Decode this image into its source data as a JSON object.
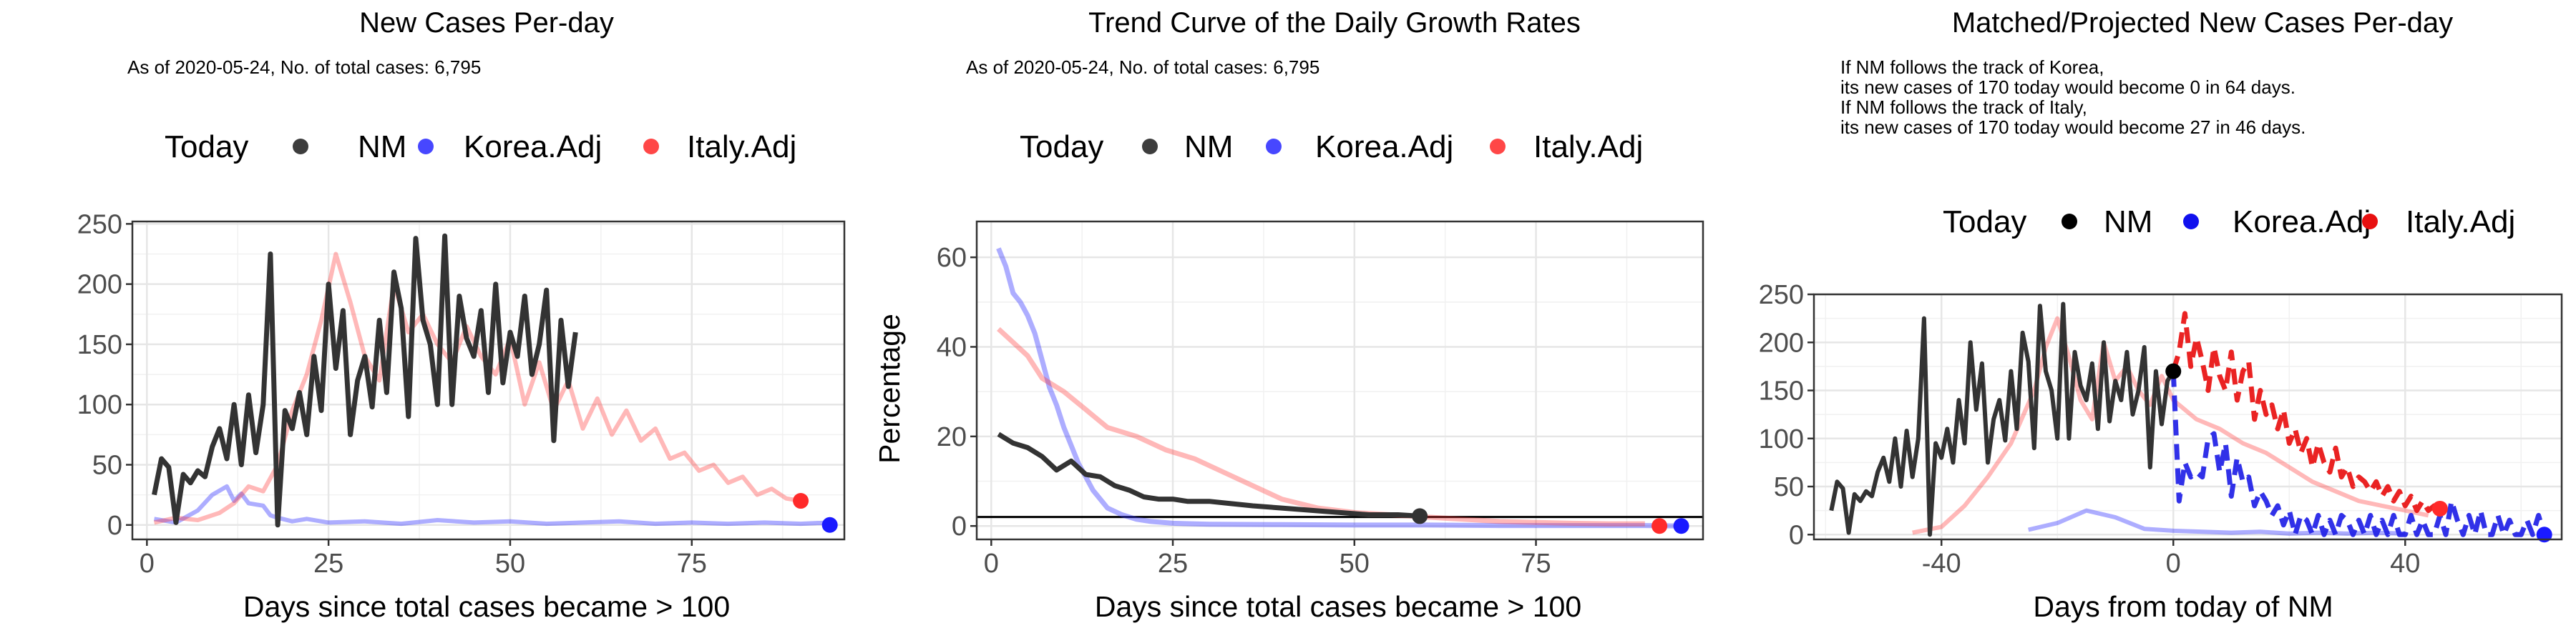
{
  "chart_data": [
    {
      "type": "line",
      "title": "New Cases Per-day",
      "subtitle": "As of 2020-05-24, No. of total cases: 6,795",
      "legend": {
        "title": "Today",
        "position": "top",
        "entries": [
          "NM",
          "Korea.Adj",
          "Italy.Adj"
        ]
      },
      "xlabel": "Days since total cases became > 100",
      "ylabel": "",
      "xlim": [
        -2,
        96
      ],
      "ylim": [
        -12,
        252
      ],
      "xticks": [
        0,
        25,
        50,
        75
      ],
      "yticks": [
        0,
        50,
        100,
        150,
        200,
        250
      ],
      "grid": true,
      "series": [
        {
          "name": "NM",
          "color": "#333333",
          "opacity": 1,
          "width": 7,
          "dash": "",
          "x": [
            1,
            2,
            3,
            4,
            5,
            6,
            7,
            8,
            9,
            10,
            11,
            12,
            13,
            14,
            15,
            16,
            17,
            18,
            19,
            20,
            21,
            22,
            23,
            24,
            25,
            26,
            27,
            28,
            29,
            30,
            31,
            32,
            33,
            34,
            35,
            36,
            37,
            38,
            39,
            40,
            41,
            42,
            43,
            44,
            45,
            46,
            47,
            48,
            49,
            50,
            51,
            52,
            53,
            54,
            55,
            56,
            57,
            58,
            59
          ],
          "y": [
            25,
            55,
            48,
            2,
            42,
            35,
            45,
            40,
            65,
            80,
            55,
            100,
            50,
            108,
            60,
            100,
            225,
            0,
            95,
            80,
            110,
            75,
            140,
            95,
            200,
            130,
            178,
            75,
            120,
            140,
            98,
            170,
            110,
            210,
            180,
            90,
            238,
            170,
            150,
            100,
            240,
            100,
            190,
            155,
            140,
            178,
            110,
            200,
            118,
            160,
            140,
            190,
            125,
            150,
            195,
            70,
            170,
            115,
            160
          ]
        },
        {
          "name": "Korea.Adj",
          "color": "#3333ff",
          "opacity": 0.4,
          "width": 6,
          "dash": "",
          "x": [
            1,
            4,
            7,
            9,
            11,
            12,
            13,
            14,
            16,
            17,
            18,
            20,
            22,
            25,
            30,
            35,
            40,
            45,
            50,
            55,
            60,
            65,
            70,
            75,
            80,
            85,
            90,
            94
          ],
          "y": [
            5,
            2,
            12,
            25,
            32,
            20,
            26,
            18,
            16,
            8,
            6,
            3,
            5,
            2,
            3,
            1,
            4,
            2,
            3,
            1,
            2,
            3,
            1,
            2,
            1,
            2,
            1,
            2
          ],
          "end_point": [
            94,
            0
          ]
        },
        {
          "name": "Italy.Adj",
          "color": "#ff3333",
          "opacity": 0.35,
          "width": 6,
          "dash": "",
          "x": [
            1,
            4,
            7,
            10,
            12,
            14,
            16,
            18,
            20,
            22,
            24,
            26,
            28,
            30,
            32,
            34,
            36,
            38,
            40,
            42,
            44,
            46,
            48,
            50,
            52,
            54,
            56,
            58,
            60,
            62,
            64,
            66,
            68,
            70,
            72,
            74,
            76,
            78,
            80,
            82,
            84,
            86,
            88,
            90
          ],
          "y": [
            2,
            6,
            4,
            10,
            18,
            32,
            28,
            50,
            95,
            125,
            170,
            225,
            185,
            140,
            120,
            200,
            160,
            175,
            150,
            135,
            165,
            140,
            125,
            155,
            100,
            135,
            95,
            120,
            80,
            105,
            75,
            95,
            70,
            80,
            55,
            60,
            45,
            50,
            35,
            40,
            25,
            30,
            22,
            20
          ],
          "end_point": [
            90,
            20
          ]
        }
      ]
    },
    {
      "type": "line",
      "title": "Trend Curve of the Daily Growth Rates",
      "subtitle": "As of 2020-05-24, No. of total cases: 6,795",
      "legend": {
        "title": "Today",
        "position": "top",
        "entries": [
          "NM",
          "Korea.Adj",
          "Italy.Adj"
        ]
      },
      "xlabel": "Days since total cases became > 100",
      "ylabel": "Percentage",
      "xlim": [
        -2,
        98
      ],
      "ylim": [
        -3,
        68
      ],
      "xticks": [
        0,
        25,
        50,
        75
      ],
      "yticks": [
        0,
        20,
        40,
        60
      ],
      "grid": true,
      "reference_line": 2,
      "series": [
        {
          "name": "NM",
          "color": "#333333",
          "opacity": 1,
          "width": 7,
          "dash": "",
          "x": [
            1,
            3,
            5,
            7,
            9,
            11,
            13,
            15,
            17,
            19,
            21,
            23,
            25,
            27,
            30,
            33,
            36,
            40,
            44,
            48,
            52,
            56,
            59
          ],
          "y": [
            20.5,
            18.5,
            17.5,
            15.5,
            12.5,
            14.5,
            11.5,
            11,
            9,
            8,
            6.5,
            6,
            6,
            5.5,
            5.5,
            5,
            4.5,
            4,
            3.5,
            3,
            2.5,
            2.5,
            2.2
          ],
          "end_point": [
            59,
            2.2
          ]
        },
        {
          "name": "Korea.Adj",
          "color": "#3333ff",
          "opacity": 0.4,
          "width": 7,
          "dash": "",
          "x": [
            1,
            2,
            3,
            4,
            5,
            6,
            7,
            8,
            9,
            10,
            11,
            12,
            13,
            14,
            15,
            16,
            18,
            20,
            22,
            25,
            30,
            40,
            50,
            60,
            70,
            80,
            90,
            95
          ],
          "y": [
            62,
            58,
            52,
            50,
            47,
            43,
            37,
            31,
            27,
            22,
            18,
            14,
            11,
            8,
            6,
            4,
            2.5,
            1.5,
            1,
            0.6,
            0.4,
            0.3,
            0.2,
            0.2,
            0.1,
            0.1,
            0.1,
            0
          ],
          "end_point": [
            95,
            0
          ]
        },
        {
          "name": "Italy.Adj",
          "color": "#ff3333",
          "opacity": 0.35,
          "width": 7,
          "dash": "",
          "x": [
            1,
            3,
            5,
            7,
            10,
            13,
            16,
            20,
            24,
            28,
            32,
            36,
            40,
            45,
            50,
            55,
            60,
            65,
            70,
            75,
            80,
            85,
            90
          ],
          "y": [
            44,
            41,
            38,
            33,
            30,
            26,
            22,
            20,
            17,
            15,
            12,
            9,
            6,
            4,
            3,
            2.5,
            2,
            1.5,
            1,
            0.8,
            0.6,
            0.5,
            0.5
          ],
          "end_point": [
            92,
            0
          ]
        }
      ]
    },
    {
      "type": "line",
      "title": "Matched/Projected New Cases Per-day",
      "annotation_lines": [
        "If NM follows the track of Korea,",
        "its new cases of 170 today would become 0 in 64 days.",
        "If NM follows the track of Italy,",
        "its new cases of 170 today would become 27 in 46 days."
      ],
      "legend": {
        "title": "Today",
        "position": "top",
        "entries": [
          "NM",
          "Korea.Adj",
          "Italy.Adj"
        ]
      },
      "xlabel": "Days from today of NM",
      "ylabel": "",
      "xlim": [
        -62,
        67
      ],
      "ylim": [
        -5,
        250
      ],
      "xticks": [
        -40,
        0,
        40
      ],
      "yticks": [
        0,
        50,
        100,
        150,
        200,
        250
      ],
      "grid": true,
      "series": [
        {
          "name": "NM",
          "color": "#333333",
          "opacity": 1,
          "width": 6,
          "dash": "",
          "x": [
            -59,
            -58,
            -57,
            -56,
            -55,
            -54,
            -53,
            -52,
            -51,
            -50,
            -49,
            -48,
            -47,
            -46,
            -45,
            -44,
            -43,
            -42,
            -41,
            -40,
            -39,
            -38,
            -37,
            -36,
            -35,
            -34,
            -33,
            -32,
            -31,
            -30,
            -29,
            -28,
            -27,
            -26,
            -25,
            -24,
            -23,
            -22,
            -21,
            -20,
            -19,
            -18,
            -17,
            -16,
            -15,
            -14,
            -13,
            -12,
            -11,
            -10,
            -9,
            -8,
            -7,
            -6,
            -5,
            -4,
            -3,
            -2,
            -1,
            0
          ],
          "y": [
            25,
            55,
            48,
            2,
            42,
            35,
            45,
            40,
            65,
            80,
            55,
            100,
            50,
            108,
            60,
            100,
            225,
            0,
            95,
            80,
            110,
            75,
            140,
            95,
            200,
            130,
            178,
            75,
            120,
            140,
            98,
            170,
            110,
            210,
            180,
            90,
            238,
            170,
            150,
            100,
            240,
            100,
            190,
            155,
            140,
            178,
            110,
            200,
            118,
            160,
            140,
            190,
            125,
            150,
            195,
            70,
            170,
            115,
            160,
            170
          ],
          "end_point": [
            0,
            170
          ]
        },
        {
          "name": "Korea.Adj",
          "color": "#3333ff",
          "opacity": 0.4,
          "width": 6,
          "dash": "",
          "x": [
            -25,
            -20,
            -15,
            -10,
            -5,
            0,
            5,
            10,
            15,
            20,
            25,
            30,
            35,
            40
          ],
          "y": [
            5,
            12,
            25,
            18,
            6,
            4,
            3,
            2,
            3,
            1,
            2,
            1,
            2,
            1
          ]
        },
        {
          "name": "Korea.Adj",
          "color": "#1f1fe6",
          "opacity": 0.92,
          "width": 7,
          "dash": "22,12",
          "x": [
            0,
            1,
            2,
            3,
            4,
            5,
            6,
            7,
            8,
            9,
            10,
            11,
            12,
            13,
            14,
            15,
            16,
            17,
            18,
            19,
            20,
            21,
            22,
            23,
            24,
            25,
            26,
            27,
            28,
            29,
            30,
            31,
            32,
            33,
            34,
            35,
            36,
            37,
            38,
            39,
            40,
            41,
            42,
            43,
            44,
            45,
            46,
            47,
            48,
            49,
            50,
            51,
            52,
            53,
            54,
            55,
            56,
            57,
            58,
            59,
            60,
            61,
            62,
            63,
            64
          ],
          "y": [
            170,
            35,
            75,
            60,
            65,
            60,
            100,
            105,
            65,
            95,
            40,
            80,
            55,
            60,
            30,
            45,
            35,
            20,
            30,
            10,
            25,
            0,
            20,
            15,
            0,
            20,
            0,
            15,
            0,
            20,
            15,
            0,
            15,
            0,
            20,
            0,
            15,
            0,
            20,
            0,
            0,
            20,
            0,
            15,
            0,
            0,
            20,
            0,
            35,
            15,
            0,
            20,
            0,
            25,
            0,
            0,
            20,
            0,
            15,
            0,
            0,
            15,
            0,
            20,
            0
          ],
          "end_point": [
            64,
            0
          ]
        },
        {
          "name": "Italy.Adj",
          "color": "#ff3333",
          "opacity": 0.35,
          "width": 6,
          "dash": "",
          "x": [
            -45,
            -40,
            -36,
            -32,
            -28,
            -24,
            -22,
            -20,
            -18,
            -16,
            -14,
            -12,
            -10,
            -8,
            -6,
            -4,
            -2,
            0,
            4,
            8,
            12,
            16,
            20,
            24,
            28,
            32,
            36,
            40,
            44
          ],
          "y": [
            2,
            8,
            30,
            60,
            95,
            150,
            195,
            225,
            185,
            140,
            120,
            200,
            160,
            175,
            150,
            135,
            165,
            140,
            120,
            110,
            95,
            85,
            70,
            55,
            45,
            35,
            30,
            25,
            20
          ]
        },
        {
          "name": "Italy.Adj",
          "color": "#e81010",
          "opacity": 0.92,
          "width": 7,
          "dash": "22,12",
          "x": [
            0,
            1,
            2,
            3,
            4,
            5,
            6,
            7,
            8,
            9,
            10,
            11,
            12,
            13,
            14,
            15,
            16,
            17,
            18,
            19,
            20,
            21,
            22,
            23,
            24,
            25,
            26,
            27,
            28,
            29,
            30,
            31,
            32,
            33,
            34,
            35,
            36,
            37,
            38,
            39,
            40,
            41,
            42,
            43,
            44,
            45,
            46
          ],
          "y": [
            170,
            190,
            230,
            175,
            205,
            180,
            150,
            195,
            165,
            150,
            190,
            140,
            170,
            180,
            120,
            150,
            125,
            135,
            110,
            130,
            95,
            110,
            85,
            100,
            70,
            95,
            75,
            65,
            90,
            60,
            70,
            50,
            60,
            55,
            45,
            55,
            40,
            50,
            35,
            45,
            30,
            40,
            25,
            35,
            25,
            30,
            27
          ],
          "end_point": [
            46,
            27
          ]
        }
      ]
    }
  ]
}
